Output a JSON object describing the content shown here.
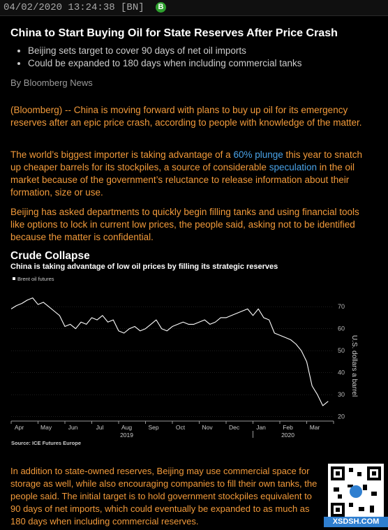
{
  "header": {
    "timestamp": "04/02/2020 13:24:38 [BN]",
    "badge": "B"
  },
  "article": {
    "headline": "China to Start Buying Oil for State Reserves After Price Crash",
    "bullets": [
      "Beijing sets target to cover 90 days of net oil imports",
      "Could be expanded to 180 days when including commercial tanks"
    ],
    "byline": "By Bloomberg News",
    "p1": "(Bloomberg) -- China is moving forward with plans to buy up oil for its emergency reserves after an epic price crash, according to people with knowledge of the matter.",
    "p2_a": "The world’s biggest importer is taking advantage of a ",
    "p2_link1": "60% plunge",
    "p2_b": " this year to snatch up cheaper barrels for its stockpiles, a source of considerable ",
    "p2_link2": "speculation",
    "p2_c": " in the oil market because of the government’s reluctance to release information about their formation, size or use.",
    "p3": "Beijing has asked departments to quickly begin filling tanks and using financial tools like options to lock in current low prices, the people said, asking not to be identified because the matter is confidential.",
    "p4": "In addition to state-owned reserves, Beijing may use commercial space for storage as well, while also encouraging companies to fill their own tanks, the people said. The initial target is to hold government stockpiles equivalent to 90 days of net imports, which could eventually be expanded to as much as 180 days when including commercial reserves."
  },
  "chart_data": {
    "type": "line",
    "title": "Crude Collapse",
    "subtitle": "China is taking advantage of low oil prices by filling its strategic reserves",
    "legend": "Brent oil futures",
    "ylabel": "U.S. dollars a barrel",
    "ylim": [
      18,
      78
    ],
    "yticks": [
      20,
      30,
      40,
      50,
      60,
      70
    ],
    "months": [
      "Apr",
      "May",
      "Jun",
      "Jul",
      "Aug",
      "Sep",
      "Oct",
      "Nov",
      "Dec",
      "Jan",
      "Feb",
      "Mar"
    ],
    "years": [
      "2019",
      "2020"
    ],
    "source": "Source: ICE Futures Europe",
    "series": [
      {
        "name": "Brent oil futures",
        "x": [
          0,
          0.2,
          0.4,
          0.6,
          0.8,
          1,
          1.2,
          1.4,
          1.6,
          1.8,
          2,
          2.2,
          2.4,
          2.6,
          2.8,
          3,
          3.2,
          3.4,
          3.6,
          3.8,
          4,
          4.2,
          4.4,
          4.6,
          4.8,
          5,
          5.2,
          5.4,
          5.6,
          5.8,
          6,
          6.2,
          6.4,
          6.6,
          6.8,
          7,
          7.2,
          7.4,
          7.6,
          7.8,
          8,
          8.2,
          8.4,
          8.6,
          8.8,
          9,
          9.2,
          9.4,
          9.6,
          9.8,
          10,
          10.2,
          10.4,
          10.6,
          10.8,
          11,
          11.2,
          11.4,
          11.6,
          11.8
        ],
        "values": [
          69,
          70.5,
          71.5,
          73,
          74,
          71,
          72,
          70,
          68,
          66,
          61,
          62,
          60,
          63,
          62,
          65,
          64,
          66,
          63,
          64,
          59,
          58,
          60,
          61,
          59,
          60,
          62,
          64,
          60,
          59,
          61,
          62,
          63,
          62,
          62,
          63,
          64,
          62,
          63,
          65,
          65,
          66,
          67,
          68,
          69,
          66,
          69,
          65,
          64,
          58,
          57,
          56,
          55,
          53,
          50,
          45,
          34,
          30,
          25,
          27
        ]
      }
    ]
  },
  "qr": {
    "label": "XSDSH.COM"
  }
}
